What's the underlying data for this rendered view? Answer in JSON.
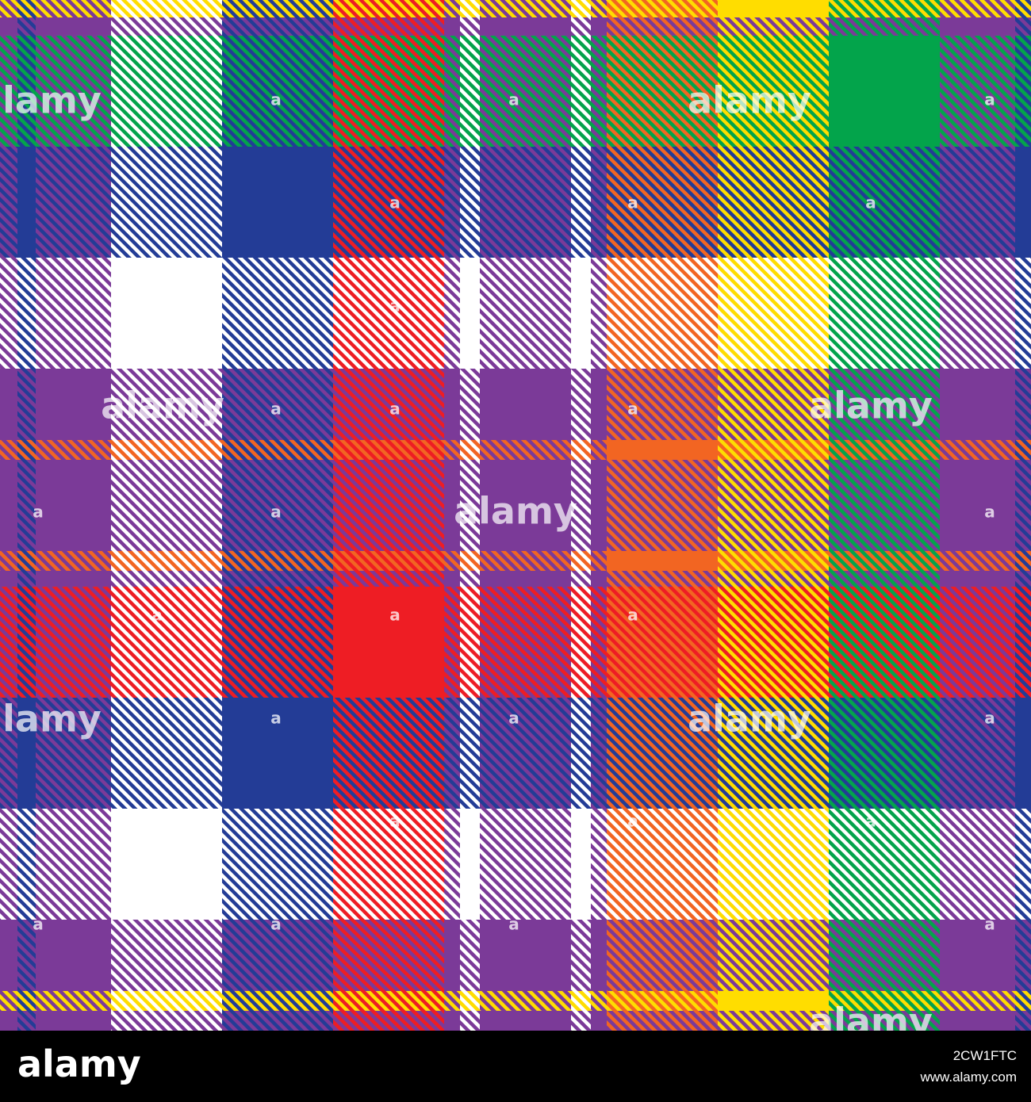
{
  "watermark": "alamy",
  "watermark_mark": "a",
  "footer": {
    "logo": "alamy",
    "image_id": "2CW1FTC",
    "url": "www.alamy.com"
  }
}
